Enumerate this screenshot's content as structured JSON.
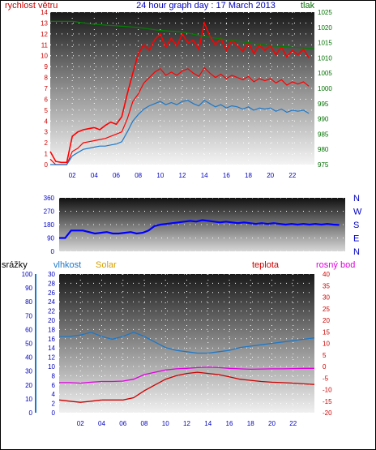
{
  "colors": {
    "wind": "#ff0000",
    "gust": "#ff0000",
    "avg_wind": "#1e78c8",
    "pressure": "#008000",
    "direction": "#0000ff",
    "rain": "#1e78c8",
    "humidity": "#1e78c8",
    "solar": "#d7a000",
    "temperature": "#cc0000",
    "dewpoint": "#e000e0",
    "axis_blue": "#0000c0",
    "axis_red": "#cc0000",
    "axis_green": "#007000"
  },
  "chart_data": [
    {
      "type": "line",
      "title": "24 hour graph day : 17 March 2013",
      "left_label": "rychlost větru",
      "right_label": "tlak",
      "x_ticks": [
        "02",
        "04",
        "06",
        "08",
        "10",
        "12",
        "14",
        "16",
        "18",
        "20",
        "22"
      ],
      "x_range": [
        0,
        24
      ],
      "left_ticks": [
        "0",
        "1",
        "2",
        "3",
        "4",
        "5",
        "6",
        "7",
        "8",
        "9",
        "10",
        "11",
        "12",
        "13",
        "14"
      ],
      "left_range": [
        0,
        14
      ],
      "right_ticks": [
        "975",
        "980",
        "985",
        "990",
        "995",
        "1000",
        "1005",
        "1010",
        "1015",
        "1020",
        "1025"
      ],
      "right_range": [
        975,
        1025
      ],
      "series": [
        {
          "role": "wind",
          "x": [
            0,
            0.5,
            1,
            1.5,
            2,
            2.5,
            3,
            3.5,
            4,
            4.5,
            5,
            5.5,
            6,
            6.5,
            7,
            7.5,
            8,
            8.5,
            9,
            9.5,
            10,
            10.5,
            11,
            11.5,
            12,
            12.5,
            13,
            13.5,
            14,
            14.5,
            15,
            15.5,
            16,
            16.5,
            17,
            17.5,
            18,
            18.5,
            19,
            19.5,
            20,
            20.5,
            21,
            21.5,
            22,
            22.5,
            23,
            23.5
          ],
          "y": [
            0.5,
            0,
            0,
            0,
            1.2,
            1.5,
            2,
            2.1,
            2.2,
            2.3,
            2.4,
            2.6,
            2.8,
            3,
            4.2,
            5.8,
            6.5,
            7.5,
            8,
            8.5,
            8.8,
            8.2,
            8.5,
            8.2,
            8.6,
            8.8,
            8.4,
            8.1,
            8.9,
            8.4,
            8,
            8.3,
            7.9,
            8.2,
            8,
            7.8,
            8.1,
            7.6,
            7.9,
            7.7,
            7.9,
            7.5,
            7.8,
            7.3,
            7.6,
            7.4,
            7.6,
            7.2
          ]
        },
        {
          "role": "gust",
          "x": [
            0,
            0.5,
            1,
            1.5,
            2,
            2.5,
            3,
            3.5,
            4,
            4.5,
            5,
            5.5,
            6,
            6.5,
            7,
            7.5,
            8,
            8.5,
            9,
            9.5,
            10,
            10.5,
            11,
            11.5,
            12,
            12.5,
            13,
            13.5,
            14,
            14.5,
            15,
            15.5,
            16,
            16.5,
            17,
            17.5,
            18,
            18.5,
            19,
            19.5,
            20,
            20.5,
            21,
            21.5,
            22,
            22.5,
            23,
            23.5
          ],
          "y": [
            1.2,
            0.3,
            0.2,
            0.2,
            2.6,
            3,
            3.2,
            3.3,
            3.4,
            3.2,
            3.6,
            3.9,
            3.7,
            4.4,
            6.5,
            8.4,
            10.2,
            11,
            10.5,
            11.5,
            12,
            10.8,
            11.6,
            10.9,
            12,
            11.2,
            11.4,
            10.6,
            13,
            11.8,
            11,
            11.6,
            10.5,
            11.4,
            10.9,
            10.4,
            11.2,
            10.2,
            11,
            10.5,
            10.9,
            10.1,
            10.8,
            9.9,
            10.5,
            10.1,
            10.6,
            9.8
          ]
        },
        {
          "role": "avg_wind",
          "x": [
            0,
            0.5,
            1,
            1.5,
            2,
            2.5,
            3,
            3.5,
            4,
            4.5,
            5,
            5.5,
            6,
            6.5,
            7,
            7.5,
            8,
            8.5,
            9,
            9.5,
            10,
            10.5,
            11,
            11.5,
            12,
            12.5,
            13,
            13.5,
            14,
            14.5,
            15,
            15.5,
            16,
            16.5,
            17,
            17.5,
            18,
            18.5,
            19,
            19.5,
            20,
            20.5,
            21,
            21.5,
            22,
            22.5,
            23,
            23.5
          ],
          "y": [
            0,
            0,
            0,
            0,
            0.8,
            1.1,
            1.4,
            1.5,
            1.6,
            1.7,
            1.7,
            1.8,
            1.9,
            2.1,
            3,
            4,
            4.6,
            5.1,
            5.4,
            5.6,
            5.8,
            5.5,
            5.7,
            5.5,
            5.8,
            5.9,
            5.6,
            5.4,
            5.9,
            5.6,
            5.3,
            5.5,
            5.2,
            5.4,
            5.3,
            5.1,
            5.3,
            5,
            5.2,
            5.1,
            5.2,
            4.9,
            5.1,
            4.8,
            5,
            4.9,
            5,
            4.7
          ]
        },
        {
          "role": "pressure",
          "x": [
            0,
            2,
            4,
            6,
            8,
            10,
            12,
            14,
            16,
            18,
            20,
            22,
            24
          ],
          "y": [
            1022,
            1022,
            1021,
            1020.5,
            1020,
            1019,
            1018.5,
            1017,
            1016,
            1015,
            1014,
            1013.5,
            1013
          ]
        }
      ]
    },
    {
      "type": "scatter",
      "series_role": "direction",
      "left_ticks": [
        "0",
        "90",
        "180",
        "270",
        "360"
      ],
      "left_range": [
        0,
        360
      ],
      "right_labels": [
        "N",
        "W",
        "S",
        "E",
        "N"
      ],
      "x_range": [
        0,
        24
      ],
      "x": [
        0,
        0.5,
        1,
        1.5,
        2,
        2.5,
        3,
        3.5,
        4,
        4.5,
        5,
        5.5,
        6,
        6.5,
        7,
        7.5,
        8,
        8.5,
        9,
        9.5,
        10,
        10.5,
        11,
        11.5,
        12,
        12.5,
        13,
        13.5,
        14,
        14.5,
        15,
        15.5,
        16,
        16.5,
        17,
        17.5,
        18,
        18.5,
        19,
        19.5,
        20,
        20.5,
        21,
        21.5,
        22,
        22.5,
        23,
        23.5
      ],
      "y": [
        90,
        90,
        140,
        140,
        140,
        130,
        120,
        125,
        130,
        120,
        120,
        125,
        130,
        120,
        125,
        140,
        170,
        180,
        185,
        190,
        195,
        200,
        205,
        200,
        210,
        205,
        200,
        195,
        200,
        195,
        190,
        195,
        190,
        185,
        190,
        185,
        190,
        185,
        180,
        185,
        180,
        185,
        180,
        185,
        180,
        185,
        180,
        178
      ]
    },
    {
      "type": "line",
      "left_label_1": "srážky",
      "left_label_2": "vlhkost",
      "left_label_3": "Solar",
      "right_label_1": "teplota",
      "right_label_2": "rosný bod",
      "x_ticks": [
        "02",
        "04",
        "06",
        "08",
        "10",
        "12",
        "14",
        "16",
        "18",
        "20",
        "22"
      ],
      "x_range": [
        0,
        24
      ],
      "rain_ticks": [
        "0",
        "10",
        "20",
        "30",
        "40",
        "50",
        "60",
        "70",
        "80",
        "90",
        "100"
      ],
      "rain_range": [
        0,
        100
      ],
      "humidity_ticks": [
        "0",
        "2",
        "4",
        "6",
        "8",
        "10",
        "12",
        "14",
        "16",
        "18",
        "20",
        "22",
        "24",
        "26",
        "28",
        "30"
      ],
      "humidity_range": [
        0,
        30
      ],
      "temp_ticks": [
        "-20",
        "-15",
        "-10",
        "-5",
        "0",
        "5",
        "10",
        "15",
        "20",
        "25",
        "30",
        "35",
        "40"
      ],
      "temp_range": [
        -20,
        40
      ],
      "series": [
        {
          "role": "humidity",
          "x": [
            0,
            1,
            2,
            3,
            4,
            5,
            6,
            7,
            8,
            9,
            10,
            11,
            12,
            13,
            14,
            15,
            16,
            17,
            18,
            19,
            20,
            21,
            22,
            23,
            24
          ],
          "y": [
            55,
            55,
            56,
            58,
            55,
            53,
            55,
            58,
            55,
            51,
            47,
            45,
            44,
            43,
            43,
            44,
            45,
            47,
            48,
            49,
            50,
            51,
            52,
            53,
            54
          ]
        },
        {
          "role": "temperature",
          "x": [
            0,
            1,
            2,
            3,
            4,
            5,
            6,
            7,
            8,
            9,
            10,
            11,
            12,
            13,
            14,
            15,
            16,
            17,
            18,
            19,
            20,
            21,
            22,
            23,
            24
          ],
          "y": [
            -14.5,
            -15,
            -15.5,
            -15,
            -14.5,
            -14.5,
            -14.5,
            -13.5,
            -10.5,
            -8,
            -5.5,
            -4,
            -3,
            -2.5,
            -3,
            -3.5,
            -4.5,
            -5.5,
            -6,
            -6.5,
            -6.8,
            -7,
            -7.2,
            -7.5,
            -7.8
          ]
        },
        {
          "role": "dewpoint",
          "x": [
            0,
            1,
            2,
            3,
            4,
            5,
            6,
            7,
            8,
            9,
            10,
            11,
            12,
            13,
            14,
            15,
            16,
            17,
            18,
            19,
            20,
            21,
            22,
            23,
            24
          ],
          "y": [
            -7,
            -7,
            -7.2,
            -6.8,
            -6.5,
            -6.5,
            -6.3,
            -5.5,
            -3.5,
            -2.5,
            -1.5,
            -1,
            -0.8,
            -0.5,
            -0.3,
            -0.5,
            -0.8,
            -1,
            -1.2,
            -1.1,
            -1,
            -1,
            -0.9,
            -0.8,
            -0.8
          ]
        }
      ]
    }
  ]
}
